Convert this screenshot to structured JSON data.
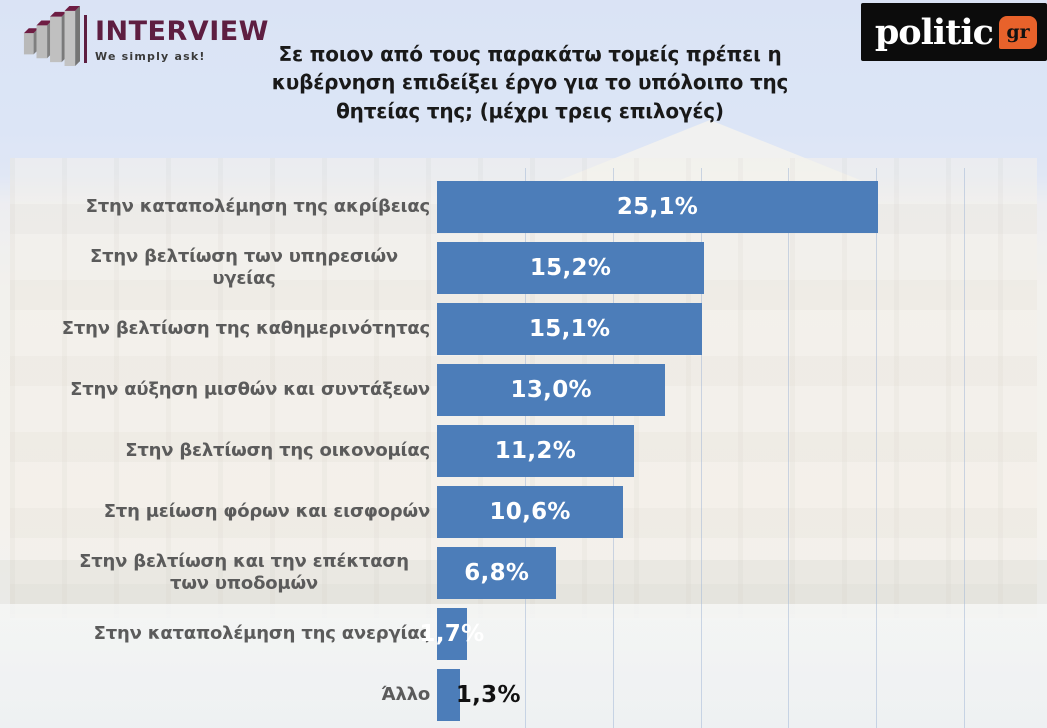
{
  "header": {
    "logo": {
      "brand": "INTERVIEW",
      "tagline": "We simply ask!"
    },
    "title": "Σε ποιον από τους παρακάτω τομείς πρέπει η κυβέρνηση επιδείξει έργο για το υπόλοιπο της θητείας της; (μέχρι τρεις επιλογές)",
    "site_logo": {
      "word": "politic",
      "suffix": "gr"
    }
  },
  "colors": {
    "bar_blue": "#4c7db9",
    "brand_maroon": "#5e1e41",
    "site_orange": "#e8622b",
    "value_inside": "#ffffff",
    "value_outside": "#111111",
    "category_label": "#5b5b5b"
  },
  "chart_data": {
    "type": "bar",
    "orientation": "horizontal",
    "title": "Σε ποιον από τους παρακάτω τομείς πρέπει η κυβέρνηση επιδείξει έργο για το υπόλοιπο της θητείας της; (μέχρι τρεις επιλογές)",
    "categories": [
      "Στην καταπολέμηση της ακρίβειας",
      "Στην βελτίωση των υπηρεσιών υγείας",
      "Στην βελτίωση της καθημερινότητας",
      "Στην αύξηση μισθών και συντάξεων",
      "Στην βελτίωση της οικονομίας",
      "Στη μείωση φόρων και εισφορών",
      "Στην βελτίωση και την επέκταση των υποδομών",
      "Στην καταπολέμηση της ανεργίας",
      "Άλλο"
    ],
    "values": [
      25.1,
      15.2,
      15.1,
      13.0,
      11.2,
      10.6,
      6.8,
      1.7,
      1.3
    ],
    "value_labels": [
      "25,1%",
      "15,2%",
      "15,1%",
      "13,0%",
      "11,2%",
      "10,6%",
      "6,8%",
      "1,7%",
      "1,3%"
    ],
    "value_label_styles": [
      "inside",
      "inside",
      "inside",
      "inside",
      "inside",
      "inside",
      "inside",
      "overlap",
      "outside"
    ],
    "xlim": [
      0,
      30
    ],
    "gridline_interval": 5,
    "grid": true,
    "legend": false,
    "xlabel": "",
    "ylabel": ""
  }
}
